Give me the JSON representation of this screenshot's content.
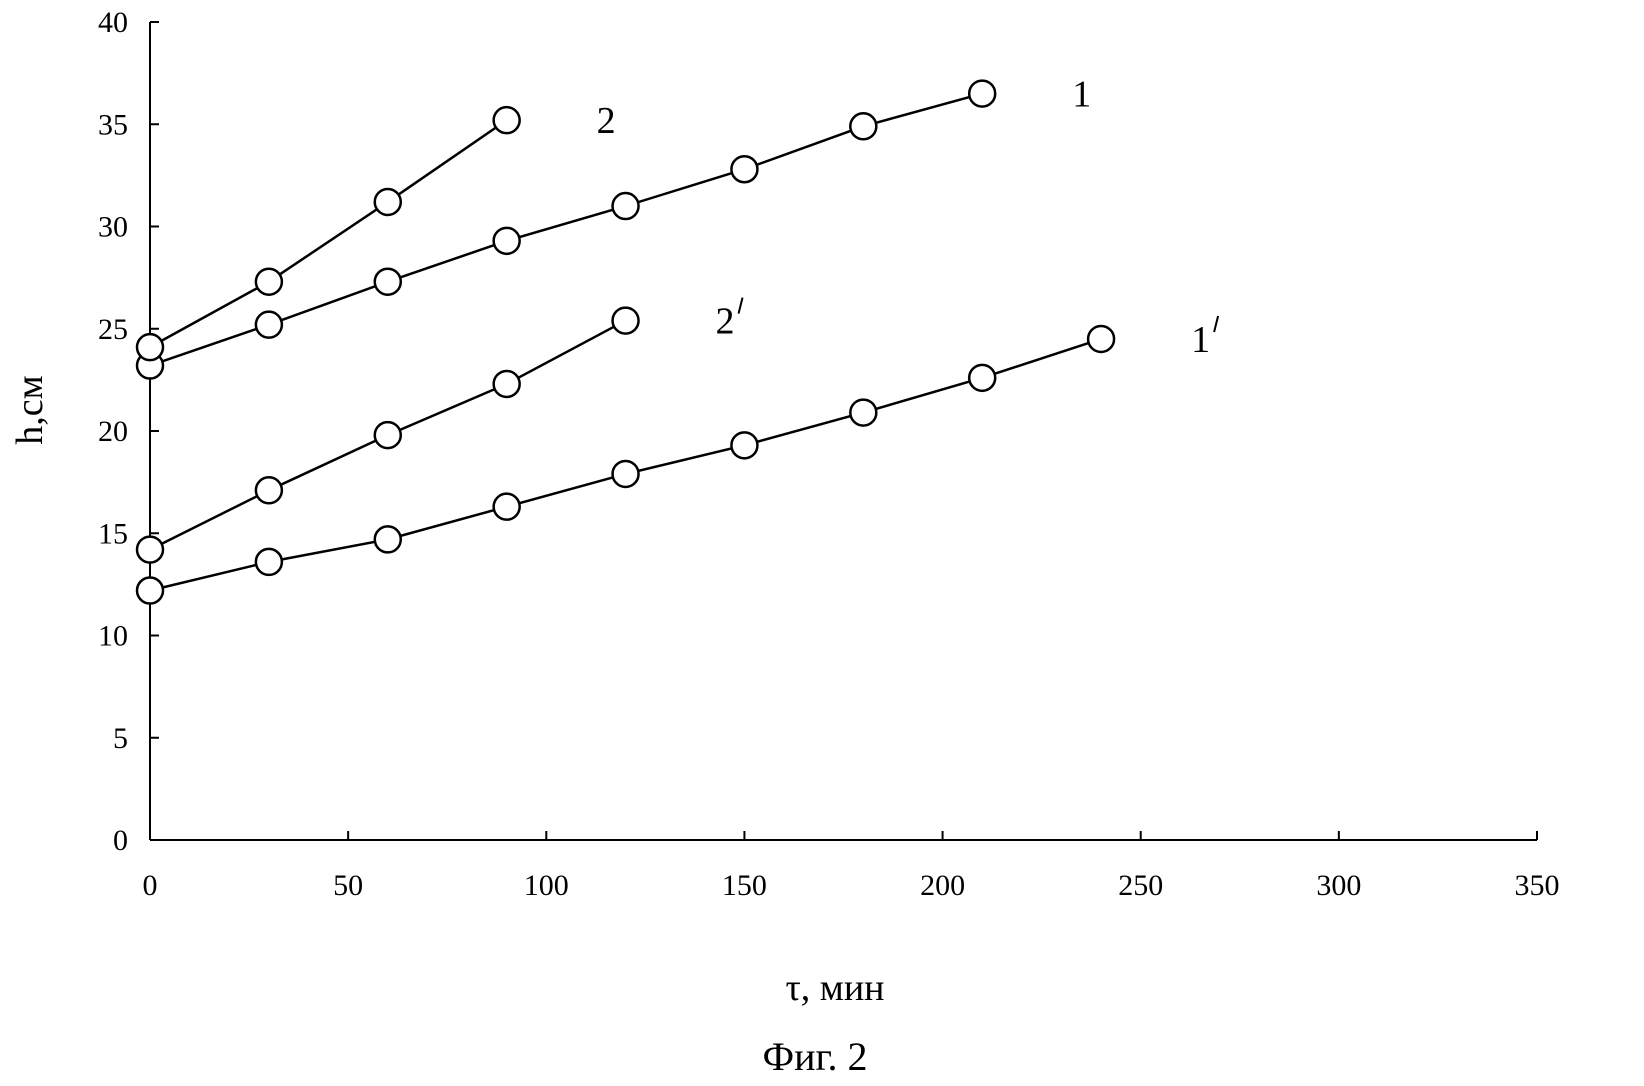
{
  "chart_data": {
    "type": "line",
    "title": "",
    "xlabel": "τ,  мин",
    "ylabel": "h,см",
    "caption": "Фиг. 2",
    "xlim": [
      0,
      350
    ],
    "ylim": [
      0,
      40
    ],
    "x_ticks": [
      0,
      50,
      100,
      150,
      200,
      250,
      300,
      350
    ],
    "y_ticks": [
      0,
      5,
      10,
      15,
      20,
      25,
      30,
      35,
      40
    ],
    "grid": false,
    "legend": "inline labels at line ends",
    "marker": "open circle",
    "series": [
      {
        "name": "1",
        "label_prime": false,
        "x": [
          0,
          30,
          60,
          90,
          120,
          150,
          180,
          210
        ],
        "y": [
          23.2,
          25.2,
          27.3,
          29.3,
          31.0,
          32.8,
          34.9,
          36.5
        ]
      },
      {
        "name": "2",
        "label_prime": false,
        "x": [
          0,
          30,
          60,
          90
        ],
        "y": [
          24.1,
          27.3,
          31.2,
          35.2
        ]
      },
      {
        "name": "2",
        "label_prime": true,
        "x": [
          0,
          30,
          60,
          90,
          120
        ],
        "y": [
          14.2,
          17.1,
          19.8,
          22.3,
          25.4
        ]
      },
      {
        "name": "1",
        "label_prime": true,
        "x": [
          0,
          30,
          60,
          90,
          120,
          150,
          180,
          210,
          240
        ],
        "y": [
          12.2,
          13.6,
          14.7,
          16.3,
          17.9,
          19.3,
          20.9,
          22.6,
          24.5
        ]
      }
    ]
  }
}
